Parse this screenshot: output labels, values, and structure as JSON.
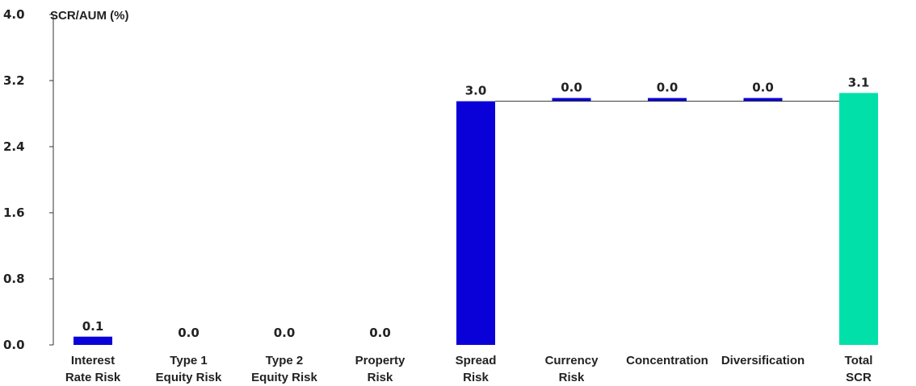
{
  "chart_data": {
    "type": "bar",
    "subtype": "waterfall",
    "title": "",
    "ylabel": "SCR/AUM (%)",
    "xlabel": "",
    "ylim": [
      0,
      4.0
    ],
    "yticks": [
      "4.0",
      "3.2",
      "2.4",
      "1.6",
      "0.8",
      "0.0"
    ],
    "ytick_values": [
      4.0,
      3.2,
      2.4,
      1.6,
      0.8,
      0.0
    ],
    "grid": false,
    "categories": [
      [
        "Interest",
        "Rate Risk"
      ],
      [
        "Type 1",
        "Equity Risk"
      ],
      [
        "Type 2",
        "Equity Risk"
      ],
      [
        "Property",
        "Risk"
      ],
      [
        "Spread",
        "Risk"
      ],
      [
        "Currency",
        "Risk"
      ],
      [
        "Concentration"
      ],
      [
        "Diversification"
      ],
      [
        "Total",
        "SCR"
      ]
    ],
    "values": [
      0.1,
      0.0,
      0.0,
      0.0,
      2.95,
      0.0,
      0.0,
      0.0,
      3.05
    ],
    "value_labels": [
      "0.1",
      "0.0",
      "0.0",
      "0.0",
      "3.0",
      "0.0",
      "0.0",
      "0.0",
      "3.1"
    ],
    "bar_visible": [
      true,
      false,
      false,
      false,
      true,
      true,
      true,
      true,
      true
    ],
    "is_total": [
      false,
      false,
      false,
      false,
      false,
      false,
      false,
      false,
      true
    ],
    "connector_level": 2.95,
    "colors": {
      "bar": "#0a00d8",
      "total": "#00e0a8",
      "axis": "#333333",
      "text": "#222222"
    }
  }
}
